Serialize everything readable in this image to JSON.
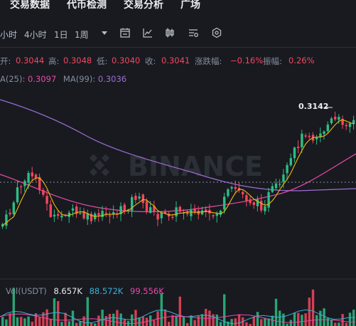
{
  "nav": {
    "items": [
      "交易数据",
      "代币检测",
      "交易分析",
      "广场"
    ]
  },
  "toolbar": {
    "intervals": [
      "小时",
      "4小时",
      "1日",
      "1周"
    ],
    "more_icon": "caret-down-icon",
    "icons": [
      "calendar-icon",
      "indicator-chart-icon",
      "candle-style-icon",
      "settings-list-icon",
      "hexagon-settings-icon"
    ]
  },
  "stats": {
    "open_label": "开:",
    "open": "0.3044",
    "high_label": "高:",
    "high": "0.3048",
    "low_label": "低:",
    "low": "0.3040",
    "close_label": "收:",
    "close": "0.3041",
    "change_label": "涨跌幅:",
    "change": "−0.16%",
    "amp_label": "振幅:",
    "amp": "0.26%"
  },
  "ma": {
    "ma25_label": "A(25):",
    "ma25": "0.3097",
    "ma99_label": "MA(99):",
    "ma99": "0.3036"
  },
  "price_marker": "0.3142",
  "watermark": "BINANCE",
  "volume": {
    "label": "Vol(USDT)",
    "v1": "8.657K",
    "v2": "88.572K",
    "v3": "99.556K"
  },
  "colors": {
    "up": "#2ebd85",
    "down": "#f6465d",
    "ma_short": "#f0b90b",
    "ma25": "#e84aa6",
    "ma99": "#a06cd5",
    "vol2": "#3db0d8",
    "vol3": "#e84aa6"
  }
}
